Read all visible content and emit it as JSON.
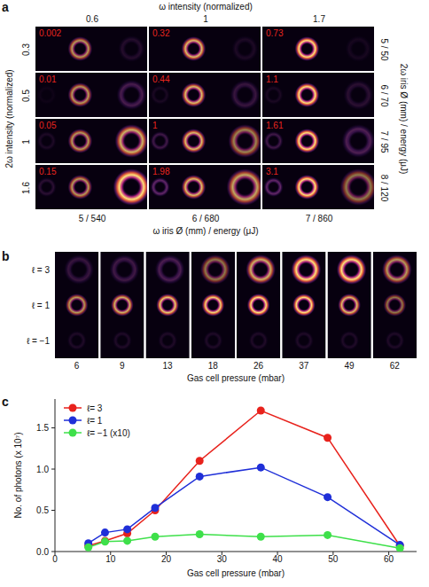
{
  "panel_a": {
    "panel_label": "a",
    "x_title": "ω intensity (normalized)",
    "x_ticks": [
      0.6,
      1,
      1.7
    ],
    "y_title": "2ω intensity (normalized)",
    "y_ticks": [
      0.3,
      0.5,
      1,
      1.6
    ],
    "right_title": "2ω iris Ø (mm) / energy (μJ)",
    "right_labels": [
      "5 / 50",
      "6 / 70",
      "7 / 95",
      "8 / 120"
    ],
    "bottom_title": "ω iris Ø (mm) / energy (μJ)",
    "bottom_labels": [
      "5 / 540",
      "6 / 680",
      "7 / 860"
    ],
    "cells": [
      [
        0.002,
        0.32,
        0.73
      ],
      [
        0.01,
        0.44,
        1.1
      ],
      [
        0.05,
        1,
        1.61
      ],
      [
        0.15,
        1.98,
        3.1
      ]
    ]
  },
  "panel_b": {
    "panel_label": "b",
    "rows": [
      "ℓ = 3",
      "ℓ = 1",
      "ℓ = −1"
    ],
    "pressures": [
      6,
      9,
      13,
      18,
      26,
      37,
      49,
      62
    ],
    "x_title": "Gas cell pressure (mbar)"
  },
  "chart_data": {
    "type": "line",
    "panel_label": "c",
    "x_label": "Gas cell pressure (mbar)",
    "y_label": "No. of photons (x 10⁷)",
    "x": [
      6,
      9,
      13,
      18,
      26,
      37,
      49,
      62
    ],
    "series": [
      {
        "name": "ℓ= 3",
        "color": "#e8221c",
        "marker": "circle",
        "values": [
          0.07,
          0.13,
          0.22,
          0.5,
          1.1,
          1.71,
          1.38,
          0.07
        ]
      },
      {
        "name": "ℓ= 1",
        "color": "#1f2fd8",
        "marker": "circle",
        "values": [
          0.1,
          0.23,
          0.27,
          0.53,
          0.91,
          1.02,
          0.66,
          0.08
        ]
      },
      {
        "name": "ℓ= −1 (x10)",
        "color": "#3ee04a",
        "marker": "circle",
        "values": [
          0.05,
          0.12,
          0.13,
          0.18,
          0.21,
          0.18,
          0.2,
          0.04
        ]
      }
    ],
    "xlim": [
      0,
      65
    ],
    "xticks": [
      0,
      10,
      20,
      30,
      40,
      50,
      60
    ],
    "ylim": [
      0,
      1.85
    ],
    "yticks": [
      {
        "value": 0,
        "label": "0.0"
      },
      {
        "value": 0.5,
        "label": "0.5"
      },
      {
        "value": 1,
        "label": "1.0"
      },
      {
        "value": 1.5,
        "label": "1.5"
      }
    ],
    "legend": "upper left",
    "grid": false
  }
}
